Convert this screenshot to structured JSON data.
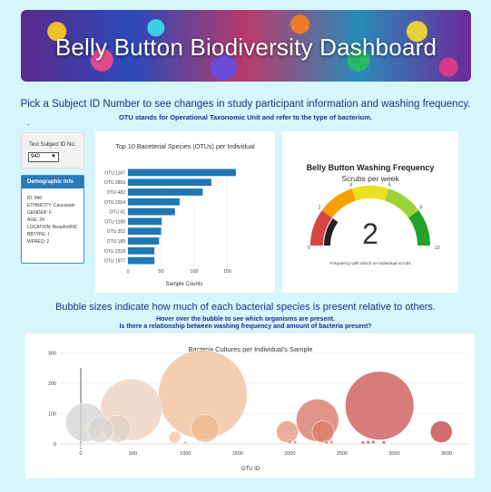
{
  "header": {
    "title": "Belly Button Biodiversity Dashboard"
  },
  "intro": {
    "line1": "Pick a Subject ID Number to see changes in study participant information and washing frequency.",
    "line2": "OTU stands for Operational Taxonomic Unit and refer to the type of bacterium.",
    "dash": "-"
  },
  "selector": {
    "label": "Test Subject ID No:",
    "value": "940"
  },
  "demographic": {
    "title": "Demographic Info",
    "rows": [
      "ID: 940",
      "ETHNICITY: Caucasian",
      "GENDER: F",
      "AGE: 24",
      "LOCATION: Beaufort/NC",
      "BBTYPE: I",
      "WFREQ: 2"
    ]
  },
  "bubble_section": {
    "title": "Bubble sizes indicate how much of each bacterial species is present relative to others.",
    "sub1": "Hover over the bubble to see which organisms are present.",
    "sub2": "Is there a relationship between washing frequency and amount of bacteria present?"
  },
  "colors": {
    "bar": "#1f77b4",
    "text_blue": "#1a2f8a",
    "background": "#d6f6fb"
  },
  "chart_data": [
    {
      "type": "bar",
      "title": "Top 10 Baceterial Species (OTUs) per Individual",
      "xlabel": "Sample Counts",
      "orientation": "horizontal",
      "categories": [
        "OTU 1167",
        "OTU 2859",
        "OTU 482",
        "OTU 2264",
        "OTU 41",
        "OTU 1189",
        "OTU 352",
        "OTU 189",
        "OTU 2318",
        "OTU 1977"
      ],
      "values": [
        163,
        126,
        113,
        78,
        71,
        51,
        50,
        47,
        40,
        40
      ],
      "xticks": [
        "0",
        "50",
        "100",
        "150"
      ],
      "xlim": [
        0,
        170
      ]
    },
    {
      "type": "gauge",
      "title": "Belly Button Washing Frequency",
      "subtitle": "Scrubs per week",
      "value": 2,
      "value_label": "2",
      "range": [
        0,
        10
      ],
      "ticks": [
        "0",
        "2",
        "4",
        "6",
        "8",
        "10"
      ],
      "bands": [
        {
          "from": 0,
          "to": 2,
          "color": "#d64545"
        },
        {
          "from": 2,
          "to": 4,
          "color": "#f5a000"
        },
        {
          "from": 4,
          "to": 6,
          "color": "#ece020"
        },
        {
          "from": 6,
          "to": 8,
          "color": "#9ad23a"
        },
        {
          "from": 8,
          "to": 10,
          "color": "#26a026"
        }
      ],
      "footnote": "Frequency with which an individual scrubs"
    },
    {
      "type": "scatter",
      "title": "Bacteria Cultures per Individual's Sample",
      "xlabel": "OTU ID",
      "xticks": [
        "0",
        "500",
        "1000",
        "1500",
        "2000",
        "2500",
        "3000",
        "3500"
      ],
      "yticks": [
        "0",
        "100",
        "200",
        "300"
      ],
      "xlim": [
        -200,
        3700
      ],
      "ylim": [
        -30,
        340
      ],
      "points": [
        {
          "x": 41,
          "y": 71,
          "size": 71,
          "color": "#d6d6d6"
        },
        {
          "x": 189,
          "y": 47,
          "size": 47,
          "color": "#d9d4d0"
        },
        {
          "x": 352,
          "y": 50,
          "size": 50,
          "color": "#e4d3c6"
        },
        {
          "x": 482,
          "y": 113,
          "size": 113,
          "color": "#ecd2c0"
        },
        {
          "x": 900,
          "y": 22,
          "size": 22,
          "color": "#f3c7a8"
        },
        {
          "x": 1000,
          "y": 4,
          "size": 4,
          "color": "#f0c0a0"
        },
        {
          "x": 1167,
          "y": 163,
          "size": 163,
          "color": "#f3c29f"
        },
        {
          "x": 1189,
          "y": 51,
          "size": 51,
          "color": "#f0b990"
        },
        {
          "x": 1977,
          "y": 40,
          "size": 40,
          "color": "#e49a80"
        },
        {
          "x": 2000,
          "y": 8,
          "size": 8,
          "color": "#e29478"
        },
        {
          "x": 2050,
          "y": 6,
          "size": 6,
          "color": "#e29478"
        },
        {
          "x": 2264,
          "y": 78,
          "size": 78,
          "color": "#d97a6a"
        },
        {
          "x": 2318,
          "y": 40,
          "size": 40,
          "color": "#da7d6c"
        },
        {
          "x": 2350,
          "y": 5,
          "size": 5,
          "color": "#d97a6a"
        },
        {
          "x": 2400,
          "y": 6,
          "size": 6,
          "color": "#d97a6a"
        },
        {
          "x": 2700,
          "y": 4,
          "size": 4,
          "color": "#d06060"
        },
        {
          "x": 2750,
          "y": 5,
          "size": 5,
          "color": "#d06060"
        },
        {
          "x": 2800,
          "y": 6,
          "size": 6,
          "color": "#cc5858"
        },
        {
          "x": 2859,
          "y": 126,
          "size": 126,
          "color": "#cd5a5a"
        },
        {
          "x": 2900,
          "y": 5,
          "size": 5,
          "color": "#cc5858"
        },
        {
          "x": 3450,
          "y": 40,
          "size": 40,
          "color": "#c44848"
        }
      ]
    }
  ]
}
